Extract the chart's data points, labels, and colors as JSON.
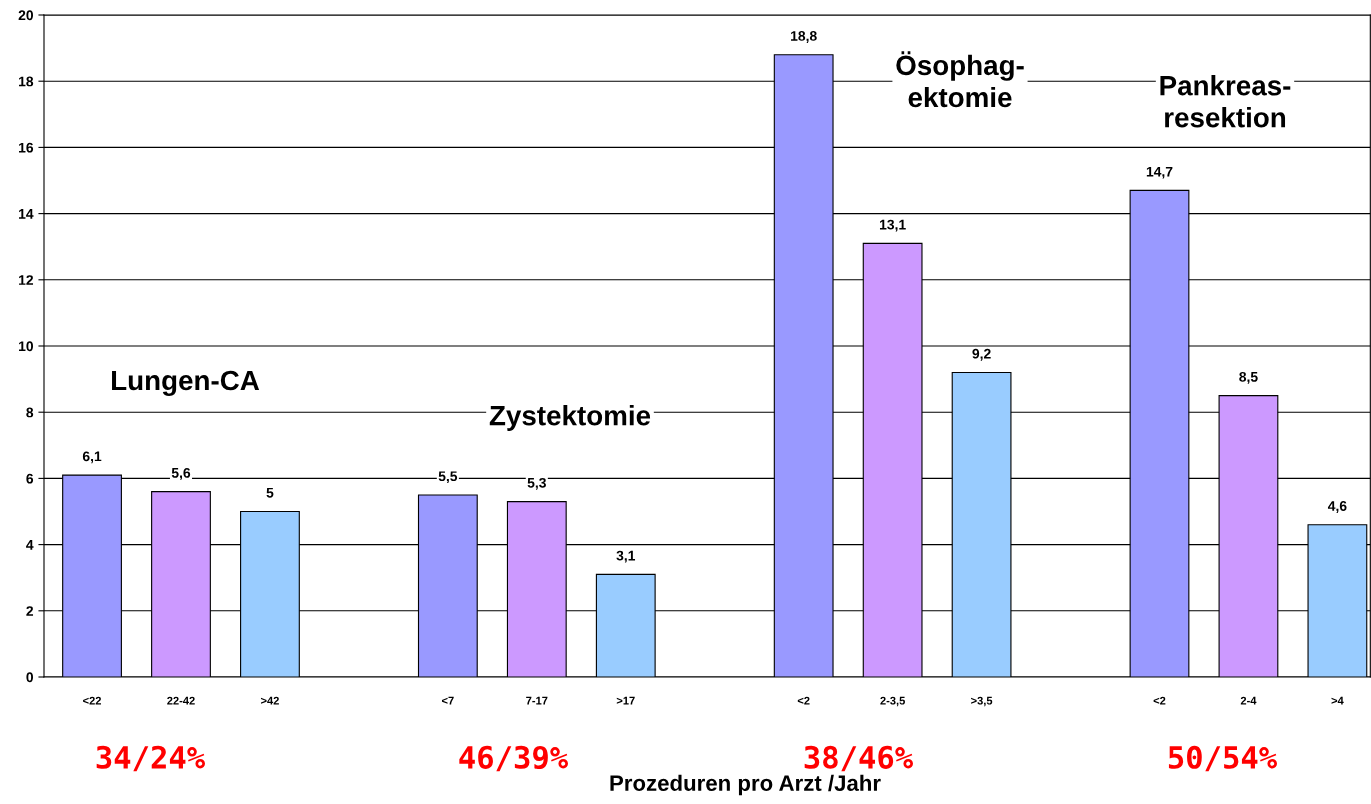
{
  "chart_data": {
    "type": "bar",
    "categories": [
      "<22",
      "22-42",
      ">42",
      null,
      "<7",
      "7-17",
      ">17",
      null,
      "<2",
      "2-3,5",
      ">3,5",
      null,
      "<2",
      "2-4",
      ">4"
    ],
    "values": [
      6.1,
      5.6,
      5,
      null,
      5.5,
      5.3,
      3.1,
      null,
      18.8,
      13.1,
      9.2,
      null,
      14.7,
      8.5,
      4.6
    ],
    "colors": [
      "#9999ff",
      "#cc99ff",
      "#99ccff",
      "#ffffff",
      "#9999ff",
      "#cc99ff",
      "#99ccff",
      "#ffffff",
      "#9999ff",
      "#cc99ff",
      "#99ccff",
      "#ffffff",
      "#9999ff",
      "#cc99ff",
      "#99ccff"
    ],
    "value_labels": [
      "6,1",
      "5,6",
      "5",
      null,
      "5,5",
      "5,3",
      "3,1",
      null,
      "18,8",
      "13,1",
      "9,2",
      null,
      "14,7",
      "8,5",
      "4,6"
    ],
    "xlabel": "Prozeduren pro Arzt /Jahr",
    "ylim": [
      0,
      20
    ],
    "yticks": [
      0,
      2,
      4,
      6,
      8,
      10,
      12,
      14,
      16,
      18,
      20
    ],
    "grid": "y",
    "legend": false,
    "annotations": [
      "Lungen-CA",
      "Zystektomie",
      "Ösophag-\nektomie",
      "Pankreas-\nresektion",
      "34/24%",
      "46/39%",
      "38/46%",
      "50/54%"
    ]
  }
}
